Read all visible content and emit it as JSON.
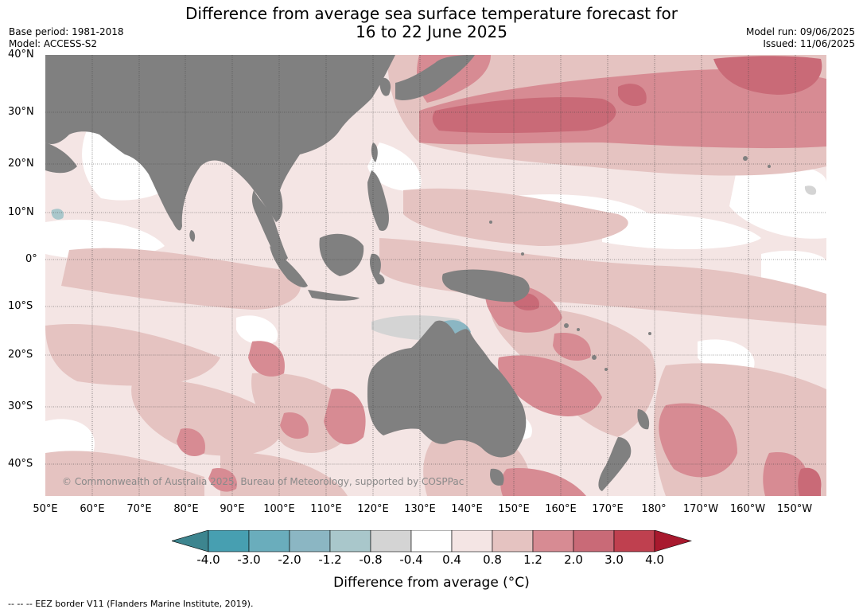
{
  "title": {
    "line1": "Difference from average sea surface temperature forecast for",
    "line2": "16 to 22 June 2025"
  },
  "meta": {
    "base_period": "Base period: 1981-2018",
    "model": "Model: ACCESS-S2",
    "model_run": "Model run: 09/06/2025",
    "issued": "Issued: 11/06/2025"
  },
  "axes": {
    "lat_labels": [
      "40°N",
      "30°N",
      "20°N",
      "10°N",
      "0°",
      "10°S",
      "20°S",
      "30°S",
      "40°S"
    ],
    "lon_labels": [
      "50°E",
      "60°E",
      "70°E",
      "80°E",
      "90°E",
      "100°E",
      "110°E",
      "120°E",
      "130°E",
      "140°E",
      "150°E",
      "160°E",
      "170°E",
      "180°",
      "170°W",
      "160°W",
      "150°W"
    ]
  },
  "colorbar": {
    "title": "Difference from average (°C)",
    "ticks": [
      "-4.0",
      "-3.0",
      "-2.0",
      "-1.2",
      "-0.8",
      "-0.4",
      "0.4",
      "0.8",
      "1.2",
      "2.0",
      "3.0",
      "4.0"
    ],
    "colors": [
      "#3d858f",
      "#479fb1",
      "#6aadbc",
      "#8bb6c3",
      "#a9c7cb",
      "#d4d4d4",
      "#ffffff",
      "#f4e5e4",
      "#e5c3c1",
      "#d78b93",
      "#c96a77",
      "#bf404f",
      "#a8192e"
    ]
  },
  "colors": {
    "land": "#808080",
    "grid": "#444444"
  },
  "copyright": "© Commonwealth of Australia 2025, Bureau of Meteorology, supported by COSPPac",
  "footnote": "-- -- -- EEZ border V11 (Flanders Marine Institute, 2019)."
}
